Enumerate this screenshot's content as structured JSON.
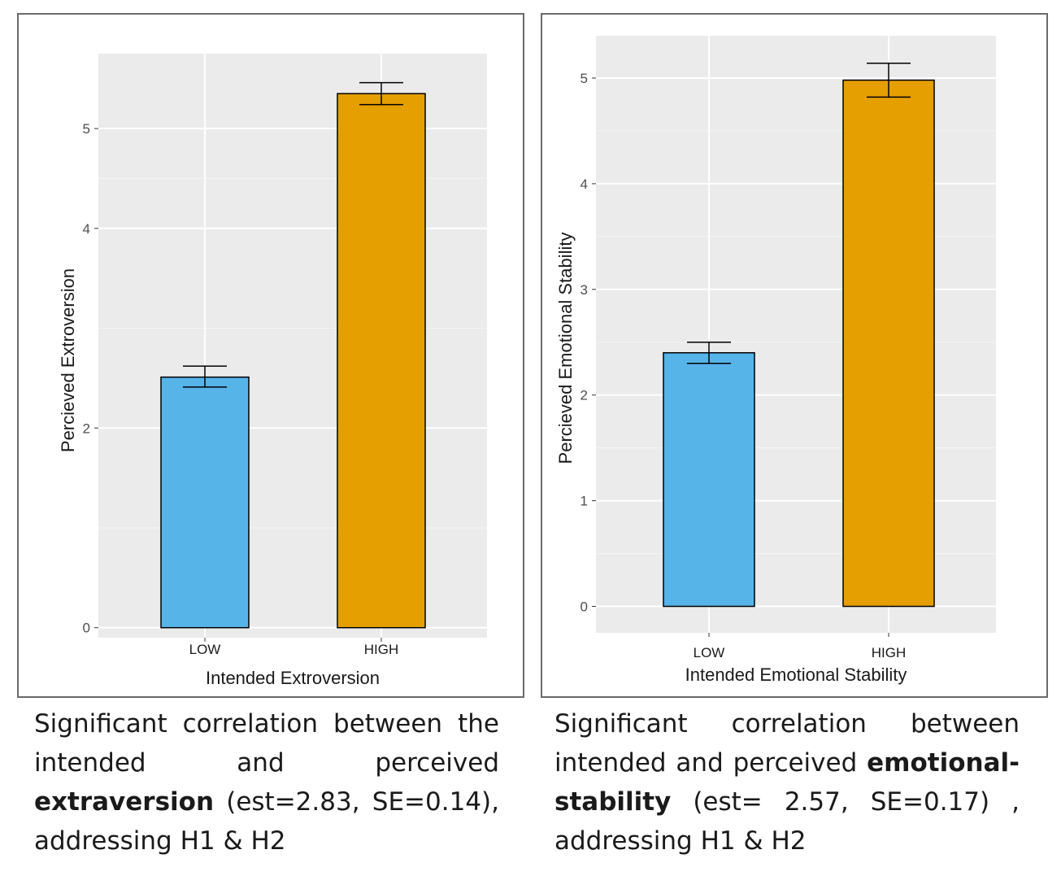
{
  "chart_data": [
    {
      "type": "bar",
      "categories": [
        "LOW",
        "HIGH"
      ],
      "values": [
        2.51,
        5.35
      ],
      "error_bars": [
        [
          2.41,
          2.62
        ],
        [
          5.24,
          5.46
        ]
      ],
      "colors": [
        "#56B4E9",
        "#E69F00"
      ],
      "xlabel": "Intended Extroversion",
      "ylabel": "Percieved Extroversion",
      "ylim": [
        -0.1,
        5.75
      ],
      "yticks": [
        0,
        2,
        4,
        5
      ],
      "grid": true
    },
    {
      "type": "bar",
      "categories": [
        "LOW",
        "HIGH"
      ],
      "values": [
        2.4,
        4.98
      ],
      "error_bars": [
        [
          2.3,
          2.5
        ],
        [
          4.82,
          5.14
        ]
      ],
      "colors": [
        "#56B4E9",
        "#E69F00"
      ],
      "xlabel": "Intended Emotional Stability",
      "ylabel": "Percieved Emotional Stability",
      "ylim": [
        -0.25,
        5.4
      ],
      "yticks": [
        0,
        1,
        2,
        3,
        4,
        5
      ],
      "grid": true
    }
  ],
  "captions": [
    {
      "pre": "Significant correlation between the intended and perceived ",
      "bold": "extraversion",
      "post": " (est=2.83, SE=0.14), addressing H1 & H2"
    },
    {
      "pre": "Significant correlation between intended and perceived ",
      "bold": "emotional-stability",
      "post": " (est= 2.57, SE=0.17) , addressing H1 & H2"
    }
  ]
}
